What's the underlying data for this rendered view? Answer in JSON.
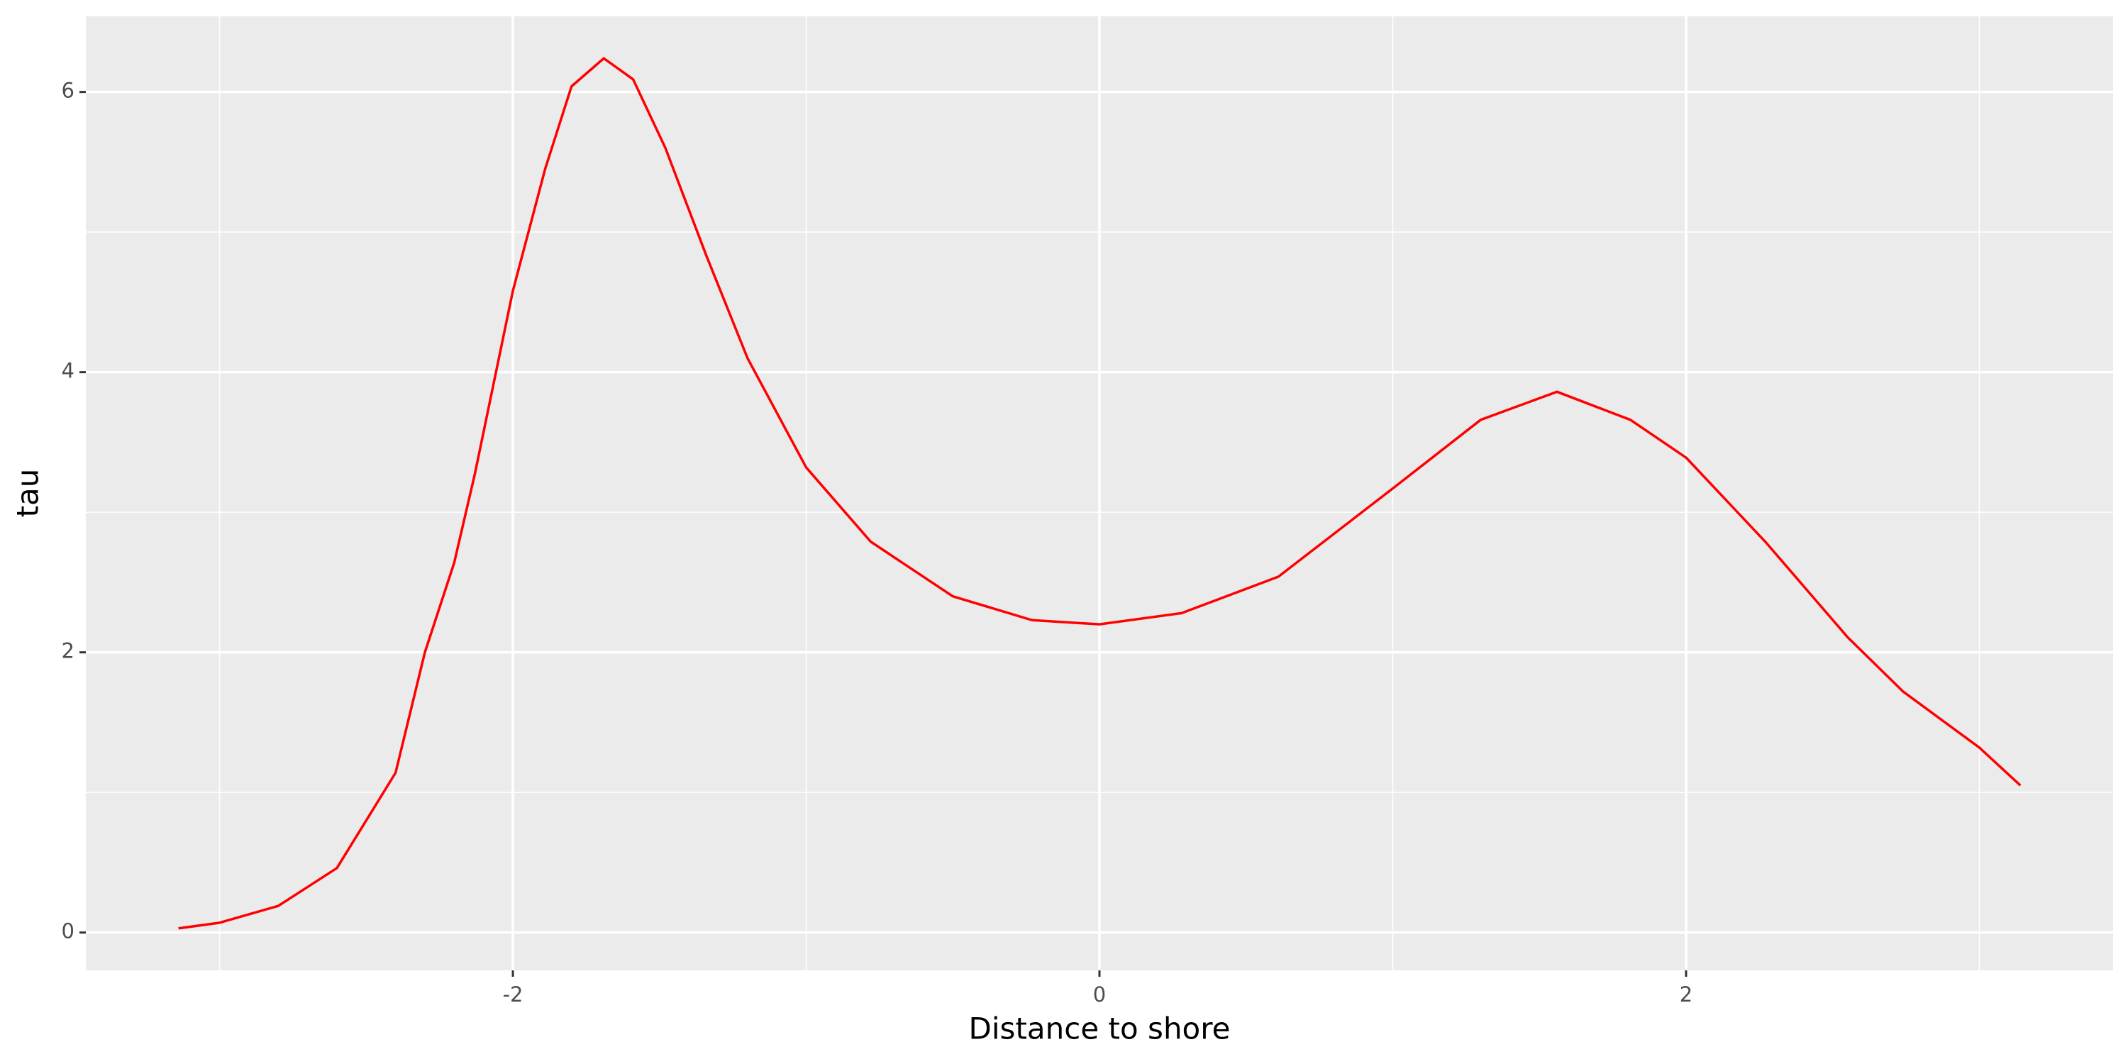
{
  "chart_data": {
    "type": "line",
    "x_label": "Distance to shore",
    "y_label": "tau",
    "x": [
      -3.14,
      -3.0,
      -2.8,
      -2.6,
      -2.4,
      -2.3,
      -2.2,
      -2.13,
      -2.0,
      -1.89,
      -1.8,
      -1.69,
      -1.59,
      -1.48,
      -1.34,
      -1.2,
      -1.0,
      -0.78,
      -0.5,
      -0.23,
      0,
      0.28,
      0.61,
      1.0,
      1.3,
      1.56,
      1.81,
      2.0,
      2.27,
      2.55,
      2.74,
      3.0,
      3.14
    ],
    "values": [
      0.03,
      0.07,
      0.19,
      0.46,
      1.14,
      2.0,
      2.64,
      3.27,
      4.58,
      5.45,
      6.04,
      6.24,
      6.09,
      5.6,
      4.83,
      4.1,
      3.32,
      2.79,
      2.4,
      2.23,
      2.2,
      2.28,
      2.54,
      3.17,
      3.66,
      3.86,
      3.66,
      3.39,
      2.79,
      2.11,
      1.72,
      1.32,
      1.05
    ],
    "color": "#ff0000",
    "xlim": [
      -3.456,
      3.456
    ],
    "ylim": [
      -0.27,
      6.54
    ],
    "xticks": [
      -2,
      0,
      2
    ],
    "yticks": [
      0,
      2,
      4,
      6
    ],
    "grid": true
  }
}
